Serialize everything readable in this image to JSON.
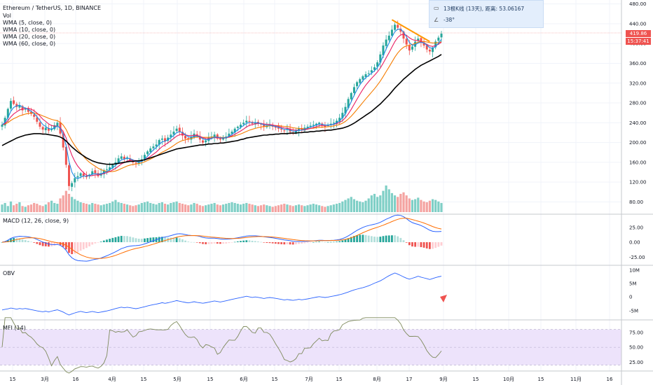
{
  "header": {
    "title": "Ethereum / TetherUS, 1D, BINANCE",
    "volume_label": "Vol",
    "ma_labels": [
      "WMA (5, close, 0)",
      "WMA (10, close, 0)",
      "WMA (20, close, 0)",
      "WMA (60, close, 0)"
    ]
  },
  "tooltip": {
    "line1": "13根K线 (13天), 距离: 53.06167",
    "line2": "-38°"
  },
  "price_tags": {
    "last_price": "419.86",
    "countdown": "15:37:41"
  },
  "panes": {
    "macd_label": "MACD (12, 26, close, 9)",
    "obv_label": "OBV",
    "mfi_label": "MFI (14)"
  },
  "colors": {
    "up": "#26a69a",
    "down": "#ef5350",
    "ma5": "#1e88e5",
    "ma10": "#e91e63",
    "ma20": "#f57c00",
    "ma60": "#000000",
    "obv": "#2962ff",
    "mfi": "#4caf50",
    "mfi_band": "#ede3fb",
    "trendline": "#ff9800"
  },
  "chart_data": [
    {
      "type": "candlestick",
      "name": "price",
      "x_ticks": [
        "15",
        "3月",
        "16",
        "4月",
        "15",
        "5月",
        "15",
        "6月",
        "15",
        "7月",
        "15",
        "8月",
        "17",
        "9月",
        "15",
        "10月",
        "15",
        "11月",
        "16"
      ],
      "y_ticks": [
        80,
        120,
        160,
        200,
        240,
        280,
        320,
        360,
        400,
        440,
        480
      ],
      "ylim": [
        58,
        488
      ],
      "last": 419.86,
      "closes": [
        236,
        250,
        268,
        284,
        278,
        272,
        275,
        265,
        268,
        262,
        258,
        252,
        242,
        232,
        226,
        230,
        224,
        228,
        235,
        240,
        218,
        190,
        155,
        112,
        118,
        128,
        132,
        138,
        132,
        130,
        135,
        142,
        138,
        132,
        138,
        144,
        146,
        150,
        155,
        160,
        168,
        172,
        166,
        170,
        164,
        160,
        158,
        160,
        166,
        175,
        182,
        188,
        192,
        196,
        205,
        208,
        202,
        210,
        216,
        222,
        228,
        222,
        214,
        208,
        206,
        212,
        218,
        214,
        206,
        200,
        204,
        210,
        212,
        216,
        208,
        206,
        210,
        212,
        218,
        222,
        228,
        232,
        236,
        240,
        244,
        242,
        238,
        240,
        238,
        236,
        232,
        234,
        236,
        232,
        230,
        228,
        226,
        224,
        228,
        222,
        220,
        224,
        228,
        226,
        230,
        232,
        234,
        236,
        238,
        240,
        234,
        232,
        236,
        238,
        240,
        244,
        250,
        260,
        272,
        288,
        300,
        312,
        322,
        328,
        334,
        338,
        340,
        346,
        352,
        362,
        378,
        396,
        408,
        416,
        428,
        438,
        432,
        424,
        410,
        398,
        386,
        394,
        404,
        410,
        402,
        396,
        388,
        384,
        392,
        404,
        412,
        420
      ],
      "wma60": [
        194,
        197,
        200,
        203,
        206,
        209,
        211,
        213,
        215,
        216,
        217,
        218,
        218,
        218,
        217,
        217,
        216,
        215,
        214,
        213,
        211,
        208,
        203,
        197,
        191,
        186,
        181,
        177,
        173,
        169,
        166,
        163,
        161,
        159,
        158,
        157,
        156,
        156,
        156,
        157,
        158,
        159,
        160,
        161,
        162,
        162,
        163,
        163,
        164,
        165,
        167,
        169,
        171,
        173,
        175,
        177,
        179,
        181,
        183,
        185,
        187,
        188,
        189,
        190,
        191,
        192,
        193,
        194,
        195,
        195,
        196,
        197,
        197,
        198,
        198,
        199,
        199,
        200,
        201,
        202,
        203,
        204,
        206,
        207,
        209,
        210,
        211,
        212,
        213,
        214,
        215,
        215,
        216,
        216,
        217,
        217,
        218,
        218,
        218,
        219,
        219,
        219,
        220,
        220,
        221,
        221,
        222,
        222,
        223,
        223,
        224,
        224,
        225,
        225,
        226,
        227,
        228,
        229,
        231,
        233,
        236,
        239,
        243,
        247,
        251,
        255,
        259,
        263,
        268,
        273,
        278,
        284,
        290,
        296,
        303,
        310,
        316,
        322,
        328,
        333,
        338,
        343,
        348,
        352,
        356,
        359,
        362,
        365,
        368,
        371,
        374,
        378
      ],
      "trendline": [
        [
          134,
          448
        ],
        [
          147,
          404
        ]
      ]
    },
    {
      "type": "bar",
      "name": "volume",
      "values": [
        10,
        12,
        8,
        14,
        9,
        11,
        13,
        8,
        7,
        9,
        10,
        12,
        11,
        9,
        8,
        10,
        13,
        15,
        12,
        11,
        18,
        22,
        28,
        24,
        20,
        17,
        15,
        13,
        12,
        11,
        10,
        12,
        11,
        10,
        9,
        10,
        11,
        12,
        14,
        16,
        13,
        12,
        11,
        10,
        9,
        8,
        9,
        10,
        12,
        13,
        14,
        12,
        11,
        10,
        12,
        13,
        11,
        10,
        12,
        13,
        14,
        12,
        11,
        10,
        9,
        10,
        12,
        11,
        9,
        8,
        9,
        10,
        11,
        12,
        10,
        9,
        10,
        11,
        12,
        13,
        12,
        11,
        10,
        11,
        12,
        11,
        10,
        9,
        8,
        9,
        10,
        9,
        8,
        7,
        8,
        9,
        10,
        11,
        10,
        9,
        8,
        9,
        10,
        9,
        8,
        9,
        10,
        11,
        10,
        9,
        8,
        7,
        8,
        9,
        10,
        11,
        12,
        14,
        16,
        18,
        20,
        17,
        15,
        14,
        13,
        15,
        18,
        22,
        24,
        20,
        22,
        28,
        35,
        30,
        25,
        22,
        20,
        24,
        26,
        22,
        18,
        16,
        17,
        19,
        16,
        14,
        13,
        15,
        17,
        16,
        14,
        12
      ]
    },
    {
      "type": "line",
      "name": "MACD (12, 26, close, 9)",
      "y_ticks": [
        -25,
        0,
        25
      ],
      "ylim": [
        -33,
        42
      ]
    },
    {
      "type": "line",
      "name": "OBV",
      "y_ticks": [
        "-5M",
        "0",
        "5M",
        "10M"
      ]
    },
    {
      "type": "line",
      "name": "MFI (14)",
      "y_ticks": [
        25,
        50,
        75
      ],
      "ylim": [
        10,
        95
      ],
      "bands": [
        20,
        80
      ]
    }
  ]
}
